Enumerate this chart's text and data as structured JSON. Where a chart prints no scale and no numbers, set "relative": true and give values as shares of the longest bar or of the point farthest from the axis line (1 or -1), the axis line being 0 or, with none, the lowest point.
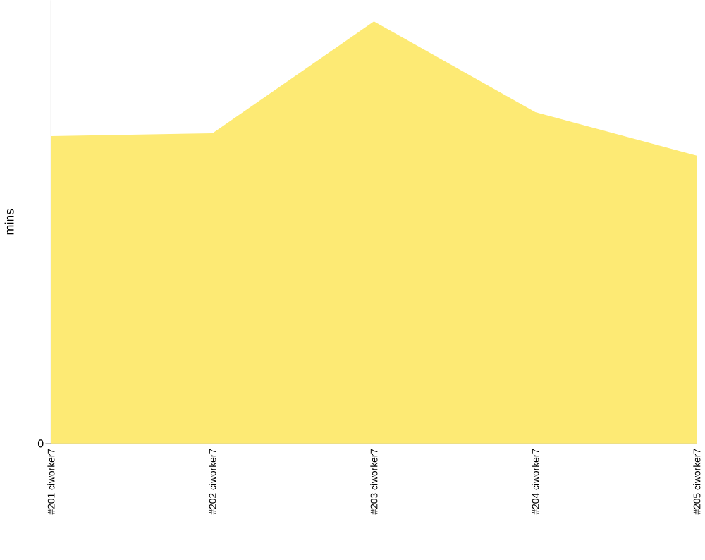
{
  "chart_data": {
    "type": "area",
    "ylabel": "mins",
    "categories": [
      "#201 ciworker7",
      "#202 ciworker7",
      "#203 ciworker7",
      "#204 ciworker7",
      "#205 ciworker7"
    ],
    "values": [
      0.728,
      0.735,
      1,
      0.785,
      0.682
    ],
    "color": "#fdea74",
    "relative": true,
    "annotations": [
      "0"
    ]
  }
}
